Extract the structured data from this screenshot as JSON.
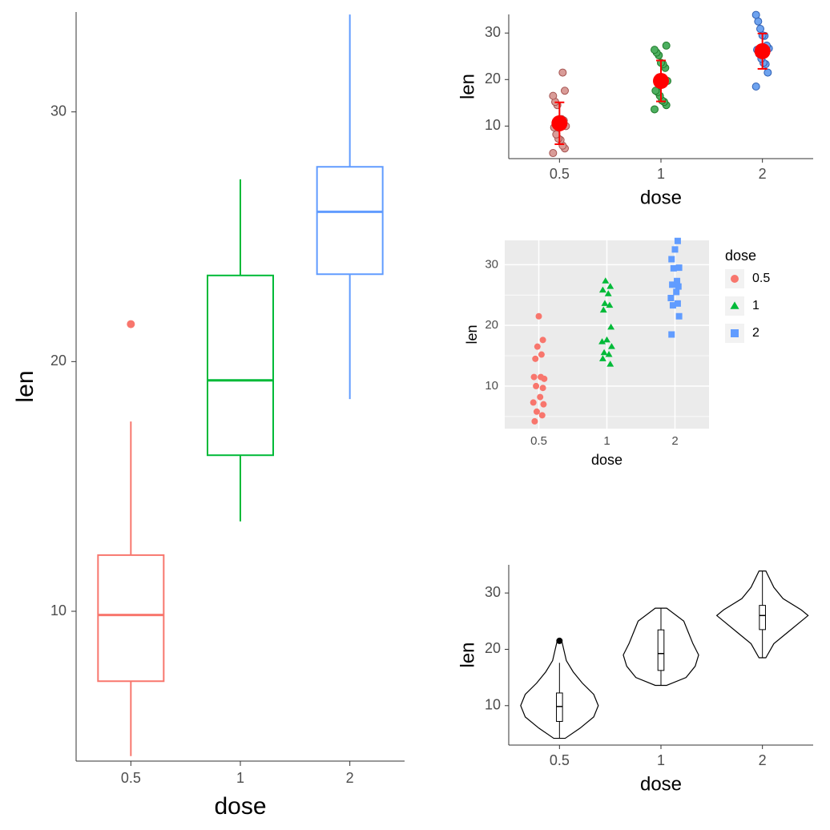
{
  "global": {
    "xlabel": "dose",
    "ylabel": "len",
    "categories": [
      "0.5",
      "1",
      "2"
    ],
    "colors": {
      "0.5": "#f8766d",
      "1": "#00ba38",
      "2": "#619cff"
    },
    "bg_white": "#ffffff",
    "bg_gray": "#ebebeb",
    "axis_tick_color": "#333333",
    "black": "#000000",
    "red_point": "#ff0000"
  },
  "boxplot": {
    "type": "boxplot",
    "ylim": [
      4,
      34
    ],
    "yticks": [
      10,
      20,
      30
    ],
    "xticks": [
      "0.5",
      "1",
      "2"
    ],
    "box_width": 0.6,
    "stroke_width": 2,
    "data": {
      "0.5": {
        "min": 4.2,
        "q1": 7.2,
        "median": 9.85,
        "q3": 12.25,
        "max": 17.6,
        "outliers": [
          21.5
        ]
      },
      "1": {
        "min": 13.6,
        "q1": 16.25,
        "median": 19.25,
        "q3": 23.45,
        "max": 27.3,
        "outliers": []
      },
      "2": {
        "min": 18.5,
        "q1": 23.5,
        "median": 26.0,
        "q3": 27.8,
        "max": 33.9,
        "outliers": []
      }
    },
    "outlier_fill": "#f8766d",
    "outlier_radius": 5
  },
  "dotplot": {
    "type": "scatter_with_errorbar",
    "ylim": [
      3,
      34
    ],
    "yticks": [
      10,
      20,
      30
    ],
    "xticks": [
      "0.5",
      "1",
      "2"
    ],
    "point_colors": {
      "0.5": "#a4524f",
      "1": "#1f7a2a",
      "2": "#2f5fb3"
    },
    "point_fill": {
      "0.5": "#d99c98",
      "1": "#4daf60",
      "2": "#6ea3ef"
    },
    "point_radius": 4.5,
    "mean_marker_color": "#ff0000",
    "mean_marker_radius": 10,
    "errorbar_color": "#ff0000",
    "errorbar_width_cap": 6,
    "errorbar_stroke": 2,
    "stats": {
      "0.5": {
        "mean": 10.6,
        "sd": 4.5
      },
      "1": {
        "mean": 19.7,
        "sd": 4.4
      },
      "2": {
        "mean": 26.1,
        "sd": 3.8
      }
    },
    "raw_points": {
      "0.5": [
        4.2,
        5.2,
        5.8,
        7.0,
        7.3,
        8.2,
        9.7,
        10.0,
        11.2,
        11.5,
        11.5,
        14.5,
        15.2,
        16.5,
        17.6,
        21.5
      ],
      "1": [
        13.6,
        14.5,
        15.2,
        15.5,
        16.5,
        17.3,
        17.6,
        19.7,
        22.5,
        23.3,
        23.6,
        25.2,
        25.8,
        26.4,
        27.3
      ],
      "2": [
        18.5,
        21.5,
        23.3,
        23.6,
        24.5,
        25.5,
        26.4,
        26.7,
        27.3,
        29.4,
        29.5,
        30.9,
        32.5,
        33.9
      ]
    }
  },
  "stripchart": {
    "type": "jitter_by_shape",
    "ylim": [
      3,
      34
    ],
    "yticks": [
      10,
      20,
      30
    ],
    "xticks": [
      "0.5",
      "1",
      "2"
    ],
    "background": "#ebebeb",
    "shapes": {
      "0.5": "circle",
      "1": "triangle",
      "2": "square"
    },
    "colors": {
      "0.5": "#f8766d",
      "1": "#00ba38",
      "2": "#619cff"
    },
    "point_size": 8,
    "legend": {
      "title": "dose",
      "items": [
        "0.5",
        "1",
        "2"
      ],
      "key_bg": "#f2f2f2"
    },
    "jitter_seed_offsets": {
      "0.5": [
        -0.06,
        0.05,
        -0.03,
        0.07,
        -0.08,
        0.02,
        0.06,
        -0.04,
        0.08,
        -0.07,
        0.03,
        -0.05,
        0.04,
        -0.02,
        0.06,
        0.0
      ],
      "1": [
        0.05,
        -0.06,
        0.03,
        -0.04,
        0.07,
        -0.07,
        0.0,
        0.06,
        -0.05,
        0.04,
        -0.03,
        0.02,
        -0.06,
        0.05,
        -0.02
      ],
      "2": [
        -0.05,
        0.06,
        -0.03,
        0.04,
        -0.06,
        0.02,
        0.05,
        -0.04,
        0.03,
        -0.02,
        0.06,
        -0.05,
        0.0,
        0.04
      ]
    }
  },
  "violin": {
    "type": "violin_with_box",
    "ylim": [
      3,
      35
    ],
    "yticks": [
      10,
      20,
      30
    ],
    "xticks": [
      "0.5",
      "1",
      "2"
    ],
    "violin_stroke": "#000000",
    "violin_fill": "#ffffff",
    "box_width": 0.06,
    "box_stroke": "#000000",
    "box_fill": "#ffffff",
    "outlier_fill": "#000000",
    "outlier_radius": 4,
    "profiles": {
      "0.5": {
        "y": [
          4.2,
          6,
          8,
          10,
          12,
          14,
          16,
          18,
          21.5
        ],
        "w": [
          0.05,
          0.18,
          0.3,
          0.34,
          0.3,
          0.2,
          0.12,
          0.06,
          0.02
        ]
      },
      "1": {
        "y": [
          13.6,
          15,
          17,
          19,
          21,
          23,
          25,
          27.3
        ],
        "w": [
          0.05,
          0.22,
          0.3,
          0.33,
          0.28,
          0.24,
          0.2,
          0.05
        ]
      },
      "2": {
        "y": [
          18.5,
          21,
          23,
          25,
          26,
          27,
          29,
          31,
          33.9
        ],
        "w": [
          0.03,
          0.1,
          0.22,
          0.34,
          0.4,
          0.34,
          0.18,
          0.1,
          0.03
        ]
      }
    }
  }
}
